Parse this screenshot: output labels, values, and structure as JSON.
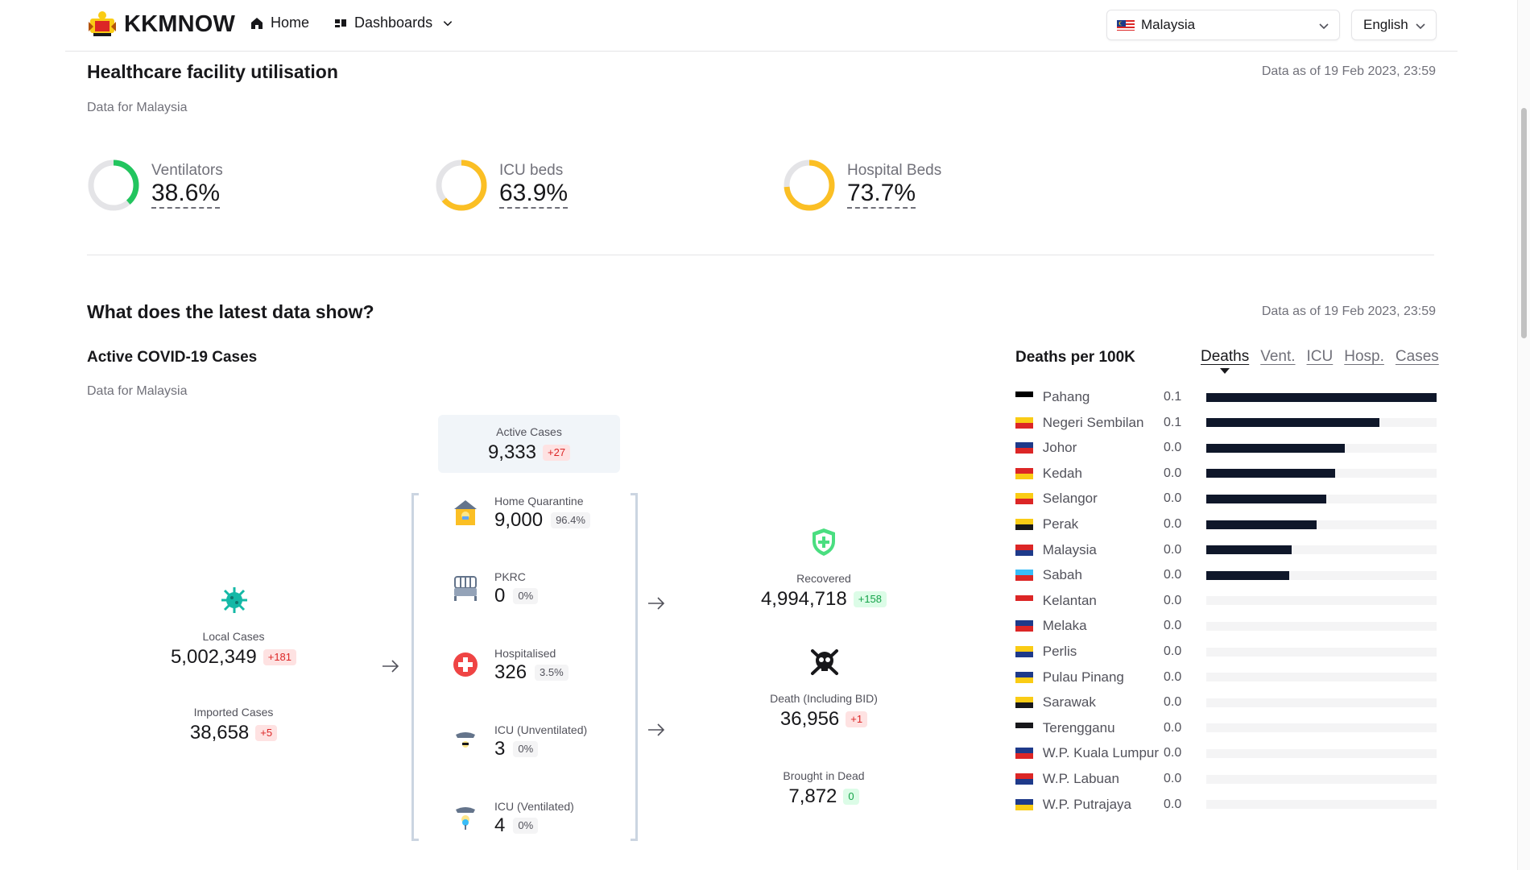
{
  "header": {
    "brand": "KKMNOW",
    "nav": {
      "home": "Home",
      "dashboards": "Dashboards"
    },
    "country_select": "Malaysia",
    "language_select": "English"
  },
  "utilisation": {
    "title": "Healthcare facility utilisation",
    "as_of": "Data as of 19 Feb 2023, 23:59",
    "subtitle": "Data for Malaysia",
    "items": [
      {
        "label": "Ventilators",
        "value": "38.6%",
        "pct": 38.6,
        "color": "#22c55e"
      },
      {
        "label": "ICU beds",
        "value": "63.9%",
        "pct": 63.9,
        "color": "#fbbf24"
      },
      {
        "label": "Hospital Beds",
        "value": "73.7%",
        "pct": 73.7,
        "color": "#fbbf24"
      }
    ]
  },
  "latest": {
    "title": "What does the latest data show?",
    "as_of": "Data as of 19 Feb 2023, 23:59",
    "active_title": "Active COVID-19 Cases",
    "subtitle": "Data for Malaysia",
    "local": {
      "label": "Local Cases",
      "value": "5,002,349",
      "delta": "+181"
    },
    "imported": {
      "label": "Imported Cases",
      "value": "38,658",
      "delta": "+5"
    },
    "active": {
      "label": "Active Cases",
      "value": "9,333",
      "delta": "+27"
    },
    "wards": [
      {
        "label": "Home Quarantine",
        "value": "9,000",
        "pct": "96.4%",
        "icon": "home-quarantine-icon"
      },
      {
        "label": "PKRC",
        "value": "0",
        "pct": "0%",
        "icon": "bed-icon"
      },
      {
        "label": "Hospitalised",
        "value": "326",
        "pct": "3.5%",
        "icon": "hospital-cross-icon"
      },
      {
        "label": "ICU (Unventilated)",
        "value": "3",
        "pct": "0%",
        "icon": "icu-unventilated-icon"
      },
      {
        "label": "ICU (Ventilated)",
        "value": "4",
        "pct": "0%",
        "icon": "icu-ventilated-icon"
      }
    ],
    "recovered": {
      "label": "Recovered",
      "value": "4,994,718",
      "delta": "+158"
    },
    "death": {
      "label": "Death (Including BID)",
      "value": "36,956",
      "delta": "+1"
    },
    "bid": {
      "label": "Brought in Dead",
      "value": "7,872",
      "delta": "0"
    }
  },
  "deaths_per_100k": {
    "title": "Deaths per 100K",
    "tabs": [
      "Deaths",
      "Vent.",
      "ICU",
      "Hosp.",
      "Cases"
    ],
    "active_tab": "Deaths",
    "states": [
      {
        "name": "Pahang",
        "value": "0.1",
        "bar": 1.0,
        "flag": [
          "#000000",
          "#ffffff"
        ]
      },
      {
        "name": "Negeri Sembilan",
        "value": "0.1",
        "bar": 0.75,
        "flag": [
          "#facc15",
          "#dc2626"
        ]
      },
      {
        "name": "Johor",
        "value": "0.0",
        "bar": 0.6,
        "flag": [
          "#1e3a8a",
          "#dc2626"
        ]
      },
      {
        "name": "Kedah",
        "value": "0.0",
        "bar": 0.56,
        "flag": [
          "#dc2626",
          "#facc15"
        ]
      },
      {
        "name": "Selangor",
        "value": "0.0",
        "bar": 0.52,
        "flag": [
          "#facc15",
          "#dc2626"
        ]
      },
      {
        "name": "Perak",
        "value": "0.0",
        "bar": 0.48,
        "flag": [
          "#facc15",
          "#18181b"
        ]
      },
      {
        "name": "Malaysia",
        "value": "0.0",
        "bar": 0.37,
        "flag": [
          "#dc2626",
          "#1e3a8a"
        ]
      },
      {
        "name": "Sabah",
        "value": "0.0",
        "bar": 0.36,
        "flag": [
          "#38bdf8",
          "#dc2626"
        ]
      },
      {
        "name": "Kelantan",
        "value": "0.0",
        "bar": 0,
        "flag": [
          "#dc2626",
          "#ffffff"
        ]
      },
      {
        "name": "Melaka",
        "value": "0.0",
        "bar": 0,
        "flag": [
          "#1e3a8a",
          "#dc2626"
        ]
      },
      {
        "name": "Perlis",
        "value": "0.0",
        "bar": 0,
        "flag": [
          "#facc15",
          "#1e3a8a"
        ]
      },
      {
        "name": "Pulau Pinang",
        "value": "0.0",
        "bar": 0,
        "flag": [
          "#1e3a8a",
          "#facc15"
        ]
      },
      {
        "name": "Sarawak",
        "value": "0.0",
        "bar": 0,
        "flag": [
          "#facc15",
          "#18181b"
        ]
      },
      {
        "name": "Terengganu",
        "value": "0.0",
        "bar": 0,
        "flag": [
          "#18181b",
          "#ffffff"
        ]
      },
      {
        "name": "W.P. Kuala Lumpur",
        "value": "0.0",
        "bar": 0,
        "flag": [
          "#1e3a8a",
          "#dc2626"
        ]
      },
      {
        "name": "W.P. Labuan",
        "value": "0.0",
        "bar": 0,
        "flag": [
          "#dc2626",
          "#1e3a8a"
        ]
      },
      {
        "name": "W.P. Putrajaya",
        "value": "0.0",
        "bar": 0,
        "flag": [
          "#1e3a8a",
          "#facc15"
        ]
      }
    ]
  }
}
